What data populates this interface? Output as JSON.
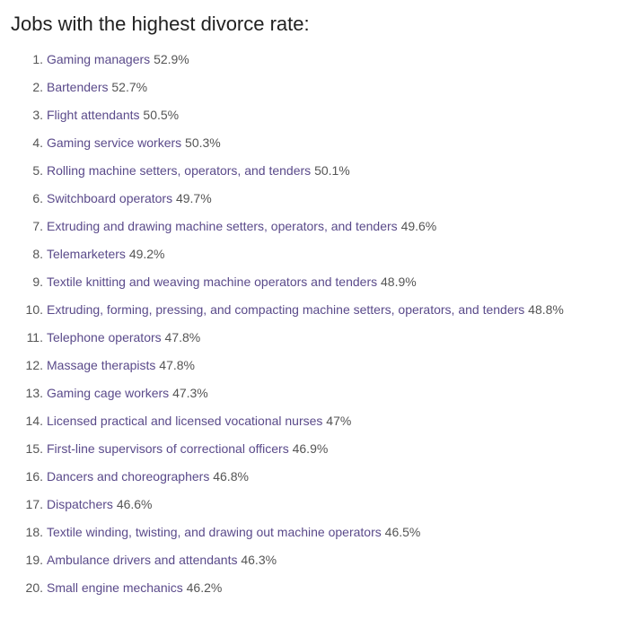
{
  "heading": "Jobs with the highest divorce rate:",
  "link_color": "#5a4a8a",
  "text_color": "#555555",
  "heading_color": "#212121",
  "background_color": "#ffffff",
  "heading_fontsize": 22,
  "item_fontsize": 14,
  "items": [
    {
      "job": "Gaming managers",
      "rate": "52.9%"
    },
    {
      "job": "Bartenders",
      "rate": "52.7%"
    },
    {
      "job": "Flight attendants",
      "rate": "50.5%"
    },
    {
      "job": "Gaming service workers",
      "rate": "50.3%"
    },
    {
      "job": "Rolling machine setters, operators, and tenders",
      "rate": "50.1%"
    },
    {
      "job": "Switchboard operators",
      "rate": "49.7%"
    },
    {
      "job": "Extruding and drawing machine setters, operators, and tenders",
      "rate": "49.6%"
    },
    {
      "job": "Telemarketers",
      "rate": "49.2%"
    },
    {
      "job": "Textile knitting and weaving machine operators and tenders",
      "rate": "48.9%"
    },
    {
      "job": "Extruding, forming, pressing, and compacting machine setters, operators, and tenders",
      "rate": "48.8%"
    },
    {
      "job": "Telephone operators",
      "rate": "47.8%"
    },
    {
      "job": "Massage therapists",
      "rate": "47.8%"
    },
    {
      "job": "Gaming cage workers",
      "rate": "47.3%"
    },
    {
      "job": "Licensed practical and licensed vocational nurses",
      "rate": "47%"
    },
    {
      "job": "First-line supervisors of correctional officers",
      "rate": "46.9%"
    },
    {
      "job": "Dancers and choreographers",
      "rate": "46.8%"
    },
    {
      "job": "Dispatchers",
      "rate": "46.6%"
    },
    {
      "job": "Textile winding, twisting, and drawing out machine operators",
      "rate": "46.5%"
    },
    {
      "job": "Ambulance drivers and attendants",
      "rate": "46.3%"
    },
    {
      "job": "Small engine mechanics",
      "rate": "46.2%"
    }
  ]
}
